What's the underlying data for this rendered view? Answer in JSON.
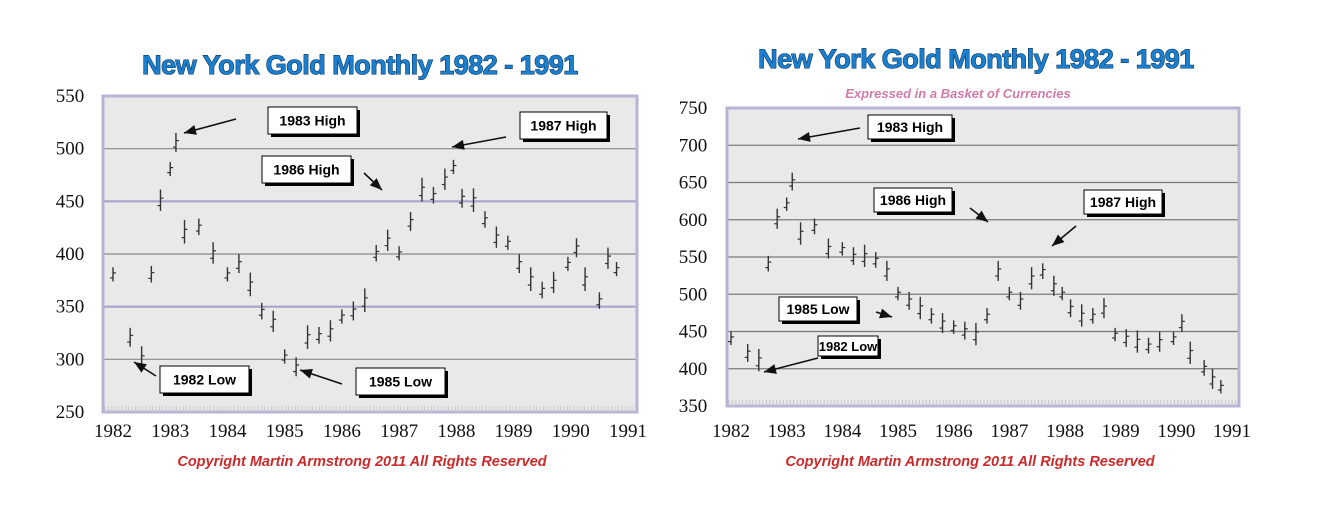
{
  "colors": {
    "title_fill": "#1a7fcf",
    "title_outline": "#0b2f55",
    "copyright": "#cc2a2a",
    "subtitle": "#d27aa8",
    "plot_bg": "#e9e9e9",
    "grid_purple": "#a9a3cc",
    "bars": "#333333"
  },
  "chart_data": [
    {
      "type": "ohlc",
      "title": "New York Gold Monthly 1982 - 1991",
      "subtitle": "",
      "xlabel": "",
      "ylabel": "",
      "ylim": [
        250,
        550
      ],
      "yticks": [
        "550",
        "500",
        "450",
        "400",
        "350",
        "300",
        "250"
      ],
      "xticks": [
        "1982",
        "1983",
        "1984",
        "1985",
        "1986",
        "1987",
        "1988",
        "1989",
        "1990",
        "1991"
      ],
      "grid": "horizontal",
      "annotations": [
        {
          "label": "1983 High",
          "date": "1983.0",
          "price": 515
        },
        {
          "label": "1987 High",
          "date": "1987.95",
          "price": 500
        },
        {
          "label": "1986 High",
          "date": "1986.7",
          "price": 452
        },
        {
          "label": "1982 Low",
          "date": "1982.45",
          "price": 297
        },
        {
          "label": "1985 Low",
          "date": "1985.1",
          "price": 284
        }
      ],
      "series": [
        {
          "values": [
            [
              "1982.0",
              380
            ],
            [
              "1982.3",
              320
            ],
            [
              "1982.5",
              300
            ],
            [
              "1982.67",
              380
            ],
            [
              "1982.83",
              450
            ],
            [
              "1983.0",
              480
            ],
            [
              "1983.1",
              505
            ],
            [
              "1983.25",
              420
            ],
            [
              "1983.5",
              425
            ],
            [
              "1983.75",
              400
            ],
            [
              "1984.0",
              380
            ],
            [
              "1984.2",
              390
            ],
            [
              "1984.4",
              370
            ],
            [
              "1984.6",
              345
            ],
            [
              "1984.8",
              335
            ],
            [
              "1985.0",
              302
            ],
            [
              "1985.2",
              292
            ],
            [
              "1985.4",
              320
            ],
            [
              "1985.6",
              322
            ],
            [
              "1985.8",
              326
            ],
            [
              "1986.0",
              340
            ],
            [
              "1986.2",
              345
            ],
            [
              "1986.4",
              355
            ],
            [
              "1986.6",
              400
            ],
            [
              "1986.8",
              412
            ],
            [
              "1987.0",
              400
            ],
            [
              "1987.2",
              430
            ],
            [
              "1987.4",
              460
            ],
            [
              "1987.6",
              455
            ],
            [
              "1987.8",
              470
            ],
            [
              "1987.95",
              482
            ],
            [
              "1988.1",
              452
            ],
            [
              "1988.3",
              450
            ],
            [
              "1988.5",
              432
            ],
            [
              "1988.7",
              415
            ],
            [
              "1988.9",
              410
            ],
            [
              "1989.1",
              390
            ],
            [
              "1989.3",
              375
            ],
            [
              "1989.5",
              365
            ],
            [
              "1989.7",
              372
            ],
            [
              "1989.95",
              390
            ],
            [
              "1990.1",
              405
            ],
            [
              "1990.25",
              375
            ],
            [
              "1990.5",
              355
            ],
            [
              "1990.65",
              395
            ],
            [
              "1990.8",
              385
            ]
          ]
        }
      ]
    },
    {
      "type": "ohlc",
      "title": "New York Gold Monthly 1982 - 1991",
      "subtitle": "Expressed in a Basket of Currencies",
      "xlabel": "",
      "ylabel": "",
      "ylim": [
        350,
        750
      ],
      "yticks": [
        "750",
        "700",
        "650",
        "600",
        "550",
        "500",
        "450",
        "400",
        "350"
      ],
      "xticks": [
        "1982",
        "1983",
        "1984",
        "1985",
        "1986",
        "1987",
        "1988",
        "1989",
        "1990",
        "1991"
      ],
      "grid": "horizontal",
      "annotations": [
        {
          "label": "1983 High",
          "date": "1983.0",
          "price": 700
        },
        {
          "label": "1986 High",
          "date": "1986.7",
          "price": 580
        },
        {
          "label": "1987 High",
          "date": "1987.6",
          "price": 560
        },
        {
          "label": "1985 Low",
          "date": "1985.0",
          "price": 455
        },
        {
          "label": "1982 Low",
          "date": "1982.45",
          "price": 385
        }
      ],
      "series": [
        {
          "values": [
            [
              "1982.0",
              440
            ],
            [
              "1982.3",
              420
            ],
            [
              "1982.5",
              410
            ],
            [
              "1982.67",
              540
            ],
            [
              "1982.83",
              600
            ],
            [
              "1983.0",
              620
            ],
            [
              "1983.1",
              650
            ],
            [
              "1983.25",
              580
            ],
            [
              "1983.5",
              590
            ],
            [
              "1983.75",
              560
            ],
            [
              "1984.0",
              560
            ],
            [
              "1984.2",
              550
            ],
            [
              "1984.4",
              550
            ],
            [
              "1984.6",
              545
            ],
            [
              "1984.8",
              530
            ],
            [
              "1985.0",
              500
            ],
            [
              "1985.2",
              490
            ],
            [
              "1985.4",
              480
            ],
            [
              "1985.6",
              470
            ],
            [
              "1985.8",
              460
            ],
            [
              "1986.0",
              455
            ],
            [
              "1986.2",
              450
            ],
            [
              "1986.4",
              445
            ],
            [
              "1986.6",
              470
            ],
            [
              "1986.8",
              530
            ],
            [
              "1987.0",
              500
            ],
            [
              "1987.2",
              490
            ],
            [
              "1987.4",
              520
            ],
            [
              "1987.6",
              530
            ],
            [
              "1987.8",
              510
            ],
            [
              "1987.95",
              500
            ],
            [
              "1988.1",
              480
            ],
            [
              "1988.3",
              470
            ],
            [
              "1988.5",
              470
            ],
            [
              "1988.7",
              480
            ],
            [
              "1988.9",
              445
            ],
            [
              "1989.1",
              440
            ],
            [
              "1989.3",
              435
            ],
            [
              "1989.5",
              430
            ],
            [
              "1989.7",
              435
            ],
            [
              "1989.95",
              440
            ],
            [
              "1990.1",
              460
            ],
            [
              "1990.25",
              420
            ],
            [
              "1990.5",
              400
            ],
            [
              "1990.65",
              385
            ],
            [
              "1990.8",
              375
            ]
          ]
        }
      ]
    }
  ],
  "footer": {
    "copyright_left": "Copyright Martin Armstrong 2011 All Rights Reserved",
    "copyright_right": "Copyright Martin Armstrong 2011 All Rights Reserved"
  }
}
